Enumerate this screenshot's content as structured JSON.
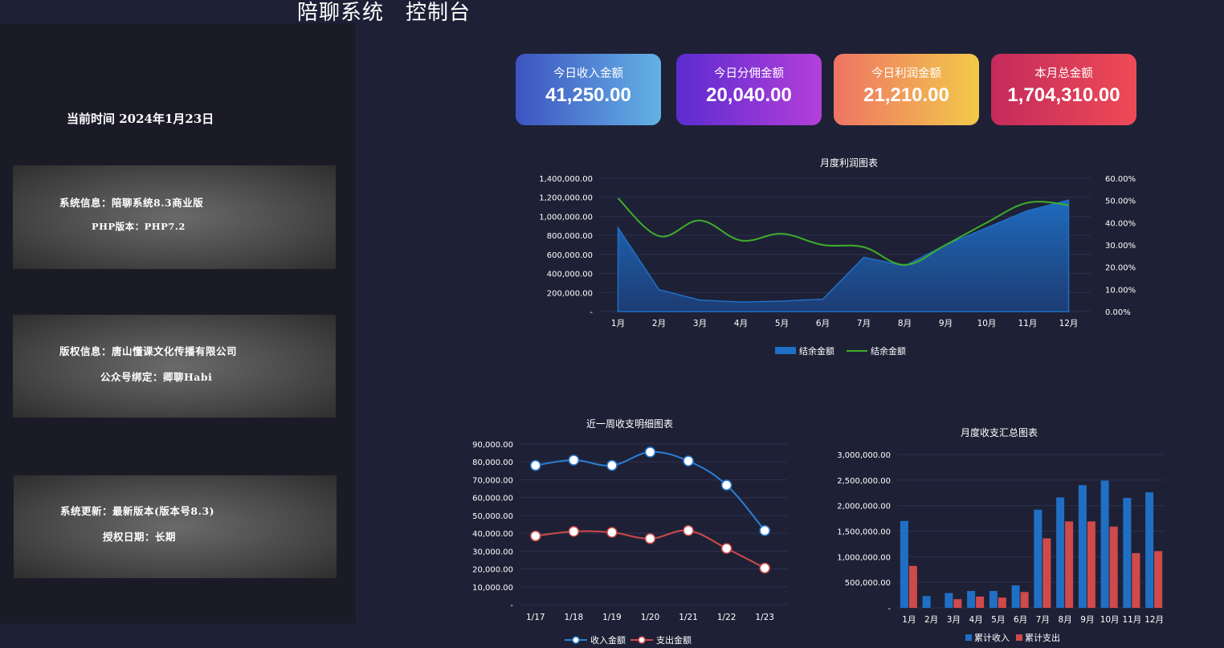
{
  "header": {
    "title": "陪聊系统　控制台"
  },
  "sidebar": {
    "current_time": "当前时间  2024年1月23日",
    "cards": [
      {
        "line1": "系统信息：陪聊系统8.3商业版",
        "line2": "PHP版本：PHP7.2"
      },
      {
        "line1": "版权信息：唐山懂课文化传播有限公司",
        "line2": "公众号绑定：卿聊Habi"
      },
      {
        "line1": "系统更新：最新版本(版本号8.3)",
        "line2": "授权日期：长期"
      }
    ]
  },
  "stats": [
    {
      "label": "今日收入金额",
      "value": "41,250.00",
      "gradient": [
        "#3d53c0",
        "#64b2e6"
      ]
    },
    {
      "label": "今日分佣金额",
      "value": "20,040.00",
      "gradient": [
        "#5c2bd0",
        "#b43fd9"
      ]
    },
    {
      "label": "今日利润金额",
      "value": "21,210.00",
      "gradient": [
        "#ee7464",
        "#f2c94a"
      ]
    },
    {
      "label": "本月总金额",
      "value": "1,704,310.00",
      "gradient": [
        "#c42a5c",
        "#ee4b55"
      ]
    }
  ],
  "chart_data": [
    {
      "type": "line",
      "title": "月度利润图表",
      "categories": [
        "1月",
        "2月",
        "3月",
        "4月",
        "5月",
        "6月",
        "7月",
        "8月",
        "9月",
        "10月",
        "11月",
        "12月"
      ],
      "y_ticks": [
        "-",
        "200,000.00",
        "400,000.00",
        "600,000.00",
        "800,000.00",
        "1,000,000.00",
        "1,200,000.00",
        "1,400,000.00"
      ],
      "y2_ticks": [
        "0.00%",
        "10.00%",
        "20.00%",
        "30.00%",
        "40.00%",
        "50.00%",
        "60.00%"
      ],
      "ylim": [
        0,
        1400000
      ],
      "y2lim": [
        0,
        60
      ],
      "series": [
        {
          "name": "结余金额",
          "kind": "area",
          "axis": "left",
          "color": "#1f6fc5",
          "values": [
            880000,
            230000,
            120000,
            100000,
            110000,
            130000,
            570000,
            480000,
            700000,
            880000,
            1060000,
            1170000
          ]
        },
        {
          "name": "结余金额",
          "kind": "line",
          "axis": "right",
          "color": "#3fae2a",
          "values": [
            51,
            34,
            41,
            32,
            35,
            30,
            29,
            21,
            30,
            40,
            49,
            48
          ]
        }
      ],
      "legend": "bottom-center"
    },
    {
      "type": "line",
      "title": "近一周收支明细图表",
      "categories": [
        "1/17",
        "1/18",
        "1/19",
        "1/20",
        "1/21",
        "1/22",
        "1/23"
      ],
      "y_ticks": [
        "-",
        "10,000.00",
        "20,000.00",
        "30,000.00",
        "40,000.00",
        "50,000.00",
        "60,000.00",
        "70,000.00",
        "80,000.00",
        "90,000.00"
      ],
      "ylim": [
        0,
        90000
      ],
      "series": [
        {
          "name": "收入金额",
          "color": "#2a7fd6",
          "values": [
            78000,
            81000,
            78000,
            85500,
            80500,
            67000,
            41500
          ]
        },
        {
          "name": "支出金额",
          "color": "#d04a4a",
          "values": [
            38500,
            41000,
            40500,
            37000,
            41500,
            31500,
            20500
          ]
        }
      ],
      "legend": "bottom-center"
    },
    {
      "type": "bar",
      "title": "月度收支汇总图表",
      "categories": [
        "1月",
        "2月",
        "3月",
        "4月",
        "5月",
        "6月",
        "7月",
        "8月",
        "9月",
        "10月",
        "11月",
        "12月"
      ],
      "y_ticks": [
        "-",
        "500,000.00",
        "1,000,000.00",
        "1,500,000.00",
        "2,000,000.00",
        "2,500,000.00",
        "3,000,000.00"
      ],
      "ylim": [
        0,
        3000000
      ],
      "series": [
        {
          "name": "累计收入",
          "color": "#1f6fc5",
          "values": [
            1700000,
            230000,
            290000,
            330000,
            330000,
            440000,
            1920000,
            2160000,
            2400000,
            2490000,
            2150000,
            2260000
          ]
        },
        {
          "name": "累计支出",
          "color": "#d04a4a",
          "values": [
            820000,
            0,
            170000,
            220000,
            200000,
            310000,
            1360000,
            1690000,
            1690000,
            1590000,
            1070000,
            1110000
          ]
        }
      ],
      "legend": "bottom-center"
    }
  ]
}
